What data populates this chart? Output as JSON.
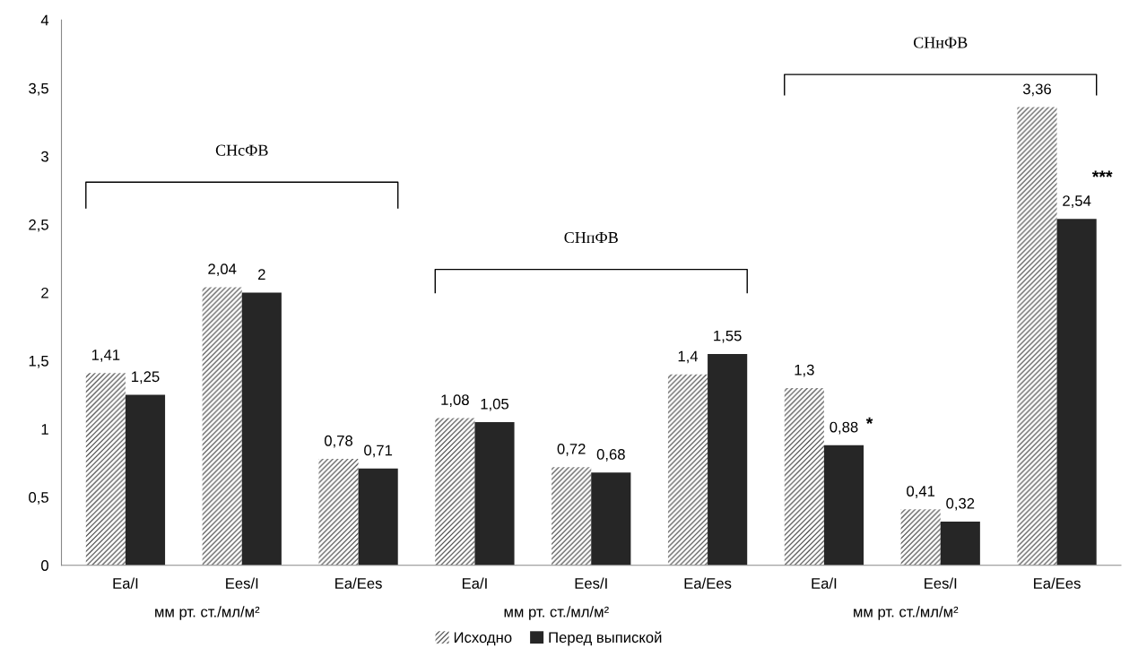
{
  "chart_data": {
    "type": "bar",
    "categories": [
      "Ea/I",
      "Ees/I",
      "Ea/Ees",
      "Ea/I",
      "Ees/I",
      "Ea/Ees",
      "Ea/I",
      "Ees/I",
      "Ea/Ees"
    ],
    "series": [
      {
        "name": "Исходно",
        "color": "#404040",
        "values": [
          1.41,
          2.04,
          0.78,
          1.08,
          0.72,
          1.4,
          1.3,
          0.41,
          3.36
        ],
        "value_labels": [
          "1,41",
          "2,04",
          "0,78",
          "1,08",
          "0,72",
          "1,4",
          "1,3",
          "0,41",
          "3,36"
        ]
      },
      {
        "name": "Перед выпиской",
        "color": "#262626",
        "values": [
          1.25,
          2,
          0.71,
          1.05,
          0.68,
          1.55,
          0.88,
          0.32,
          2.54
        ],
        "value_labels": [
          "1,25",
          "2",
          "0,71",
          "1,05",
          "0,68",
          "1,55",
          "0,88",
          "0,32",
          "2,54"
        ]
      }
    ],
    "ylim": [
      0,
      4
    ],
    "yticks": [
      0,
      {
        "value": 0.5,
        "label": "0,5"
      },
      1,
      {
        "value": 1.5,
        "label": "1,5"
      },
      2,
      {
        "value": 2.5,
        "label": "2,5"
      },
      3,
      {
        "value": 3.5,
        "label": "3,5"
      },
      4
    ],
    "legend": "bottom",
    "grid": false,
    "annotations": [
      "СНсФВ",
      "СНпФВ",
      "СНнФВ",
      "мм рт. ст./мл/м²",
      "мм рт. ст./мл/м²",
      "мм рт. ст./мл/м²",
      "*",
      "***"
    ]
  }
}
